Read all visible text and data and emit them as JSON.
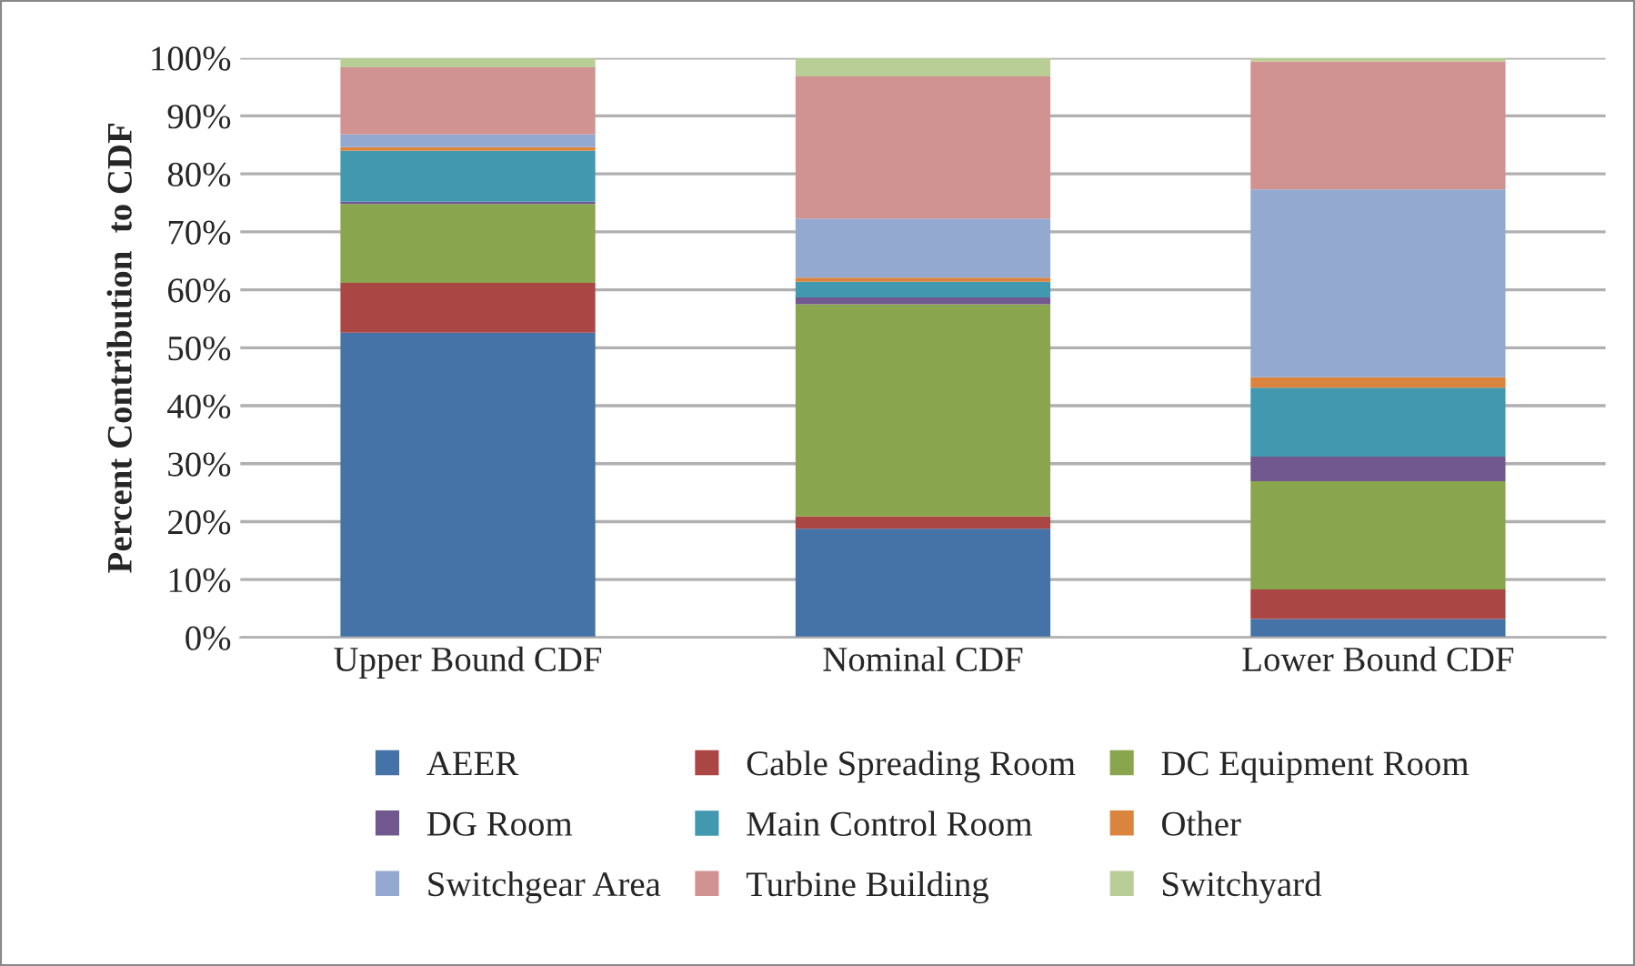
{
  "chart_data": {
    "type": "bar",
    "stacked": true,
    "ylabel": "Percent Contribution  to CDF",
    "categories": [
      "Upper Bound CDF",
      "Nominal CDF",
      "Lower Bound CDF"
    ],
    "series": [
      {
        "name": "AEER",
        "color": "#4572a7",
        "values": [
          52.6,
          18.8,
          3.2
        ]
      },
      {
        "name": "Cable Spreading Room",
        "color": "#aa4643",
        "values": [
          8.6,
          2.1,
          5.1
        ]
      },
      {
        "name": "DC Equipment Room",
        "color": "#89a54e",
        "values": [
          13.6,
          36.6,
          18.7
        ]
      },
      {
        "name": "DG Room",
        "color": "#71588f",
        "values": [
          0.4,
          1.2,
          4.2
        ]
      },
      {
        "name": "Main Control Room",
        "color": "#4198af",
        "values": [
          8.8,
          2.7,
          11.9
        ]
      },
      {
        "name": "Other",
        "color": "#db843d",
        "values": [
          0.6,
          0.7,
          1.8
        ]
      },
      {
        "name": "Switchgear Area",
        "color": "#93a9cf",
        "values": [
          2.2,
          10.2,
          32.4
        ]
      },
      {
        "name": "Turbine Building",
        "color": "#d19392",
        "values": [
          11.6,
          24.5,
          22.1
        ]
      },
      {
        "name": "Switchyard",
        "color": "#b9cd96",
        "values": [
          1.6,
          3.2,
          0.6
        ]
      }
    ],
    "ylim": [
      0,
      100
    ],
    "yticks": [
      {
        "value": 0,
        "label": "0%"
      },
      {
        "value": 10,
        "label": "10%"
      },
      {
        "value": 20,
        "label": "20%"
      },
      {
        "value": 30,
        "label": "30%"
      },
      {
        "value": 40,
        "label": "40%"
      },
      {
        "value": 50,
        "label": "50%"
      },
      {
        "value": 60,
        "label": "60%"
      },
      {
        "value": 70,
        "label": "70%"
      },
      {
        "value": 80,
        "label": "80%"
      },
      {
        "value": 90,
        "label": "90%"
      },
      {
        "value": 100,
        "label": "100%"
      }
    ],
    "grid": "y",
    "legend": "bottom"
  }
}
